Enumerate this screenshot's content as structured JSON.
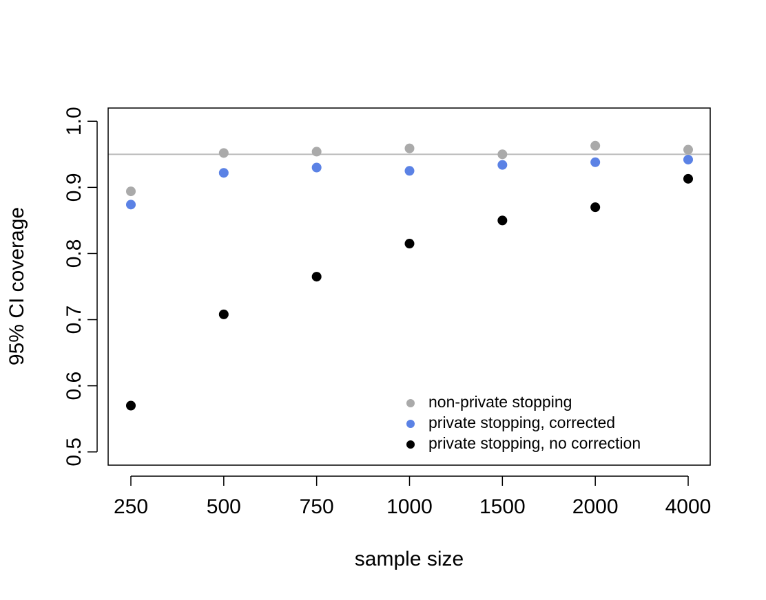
{
  "chart_data": {
    "type": "scatter",
    "title": "",
    "xlabel": "sample size",
    "ylabel": "95% CI coverage",
    "categories": [
      "250",
      "500",
      "750",
      "1000",
      "1500",
      "2000",
      "4000"
    ],
    "ylim": [
      0.48,
      1.02
    ],
    "yticks": [
      "0.5",
      "0.6",
      "0.7",
      "0.8",
      "0.9",
      "1.0"
    ],
    "reference_line": {
      "y": 0.95,
      "color": "#BEBEBE"
    },
    "grid": false,
    "legend_position": "bottom-right",
    "series": [
      {
        "name": "non-private stopping",
        "color": "#AAAAAA",
        "values": [
          0.894,
          0.952,
          0.954,
          0.959,
          0.95,
          0.963,
          0.957
        ]
      },
      {
        "name": "private stopping, corrected",
        "color": "#5B82E5",
        "values": [
          0.874,
          0.922,
          0.93,
          0.925,
          0.934,
          0.938,
          0.942
        ]
      },
      {
        "name": "private stopping, no correction",
        "color": "#000000",
        "values": [
          0.57,
          0.708,
          0.765,
          0.815,
          0.85,
          0.87,
          0.913
        ]
      }
    ]
  }
}
